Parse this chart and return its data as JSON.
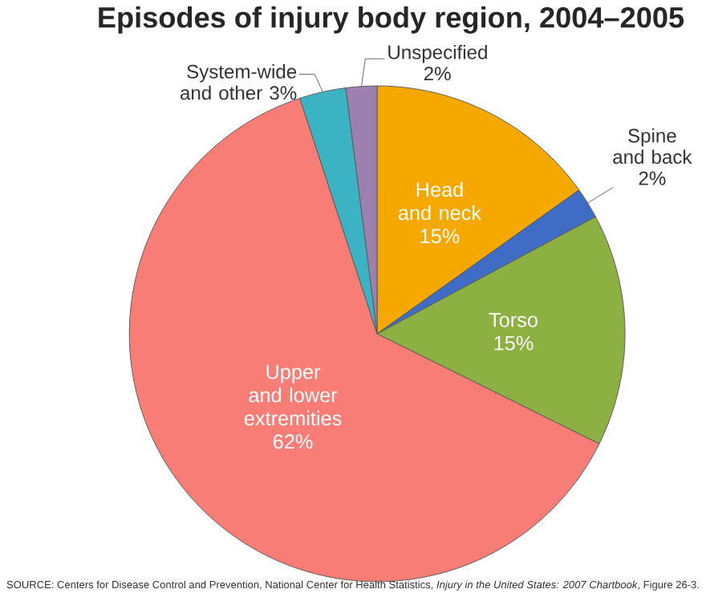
{
  "chart_data": {
    "type": "pie",
    "title": "Episodes of injury body region, 2004–2005",
    "categories": [
      "Head and neck",
      "Spine and back",
      "Torso",
      "Upper and lower extremities",
      "System-wide and other",
      "Unspecified"
    ],
    "values": [
      15,
      2,
      15,
      62,
      3,
      2
    ],
    "value_labels": [
      "15%",
      "2%",
      "15%",
      "62%",
      "3%",
      "2%"
    ],
    "colors": [
      "#f5a800",
      "#3f6cc4",
      "#8db043",
      "#f87d76",
      "#3bb3c3",
      "#9b80b0"
    ],
    "annotations": [
      "SOURCE: Centers for Disease Control and Prevention, National Center for Health Statistics, *Injury in the United States: 2007 Chartbook*, Figure 26-3."
    ]
  }
}
